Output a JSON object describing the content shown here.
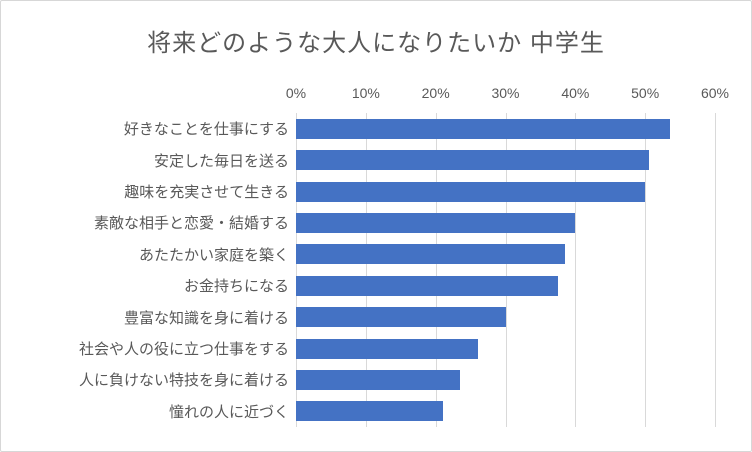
{
  "chart_data": {
    "type": "bar",
    "orientation": "horizontal",
    "title": "将来どのような大人になりたいか 中学生",
    "categories": [
      "好きなことを仕事にする",
      "安定した毎日を送る",
      "趣味を充実させて生きる",
      "素敵な相手と恋愛・結婚する",
      "あたたかい家庭を築く",
      "お金持ちになる",
      "豊富な知識を身に着ける",
      "社会や人の役に立つ仕事をする",
      "人に負けない特技を身に着ける",
      "憧れの人に近づく"
    ],
    "values": [
      53.5,
      50.5,
      50,
      40,
      38.5,
      37.5,
      30,
      26,
      23.5,
      21
    ],
    "x_ticks": [
      "0%",
      "10%",
      "20%",
      "30%",
      "40%",
      "50%",
      "60%"
    ],
    "x_tick_values": [
      0,
      10,
      20,
      30,
      40,
      50,
      60
    ],
    "xlim": [
      0,
      60
    ],
    "xlabel": "",
    "ylabel": "",
    "legend": "none",
    "grid": true,
    "colors": {
      "bar": "#4472c4",
      "gridline": "#d9d9d9",
      "text": "#595959",
      "frame_border": "#d7d7d7",
      "background": "#ffffff"
    }
  }
}
